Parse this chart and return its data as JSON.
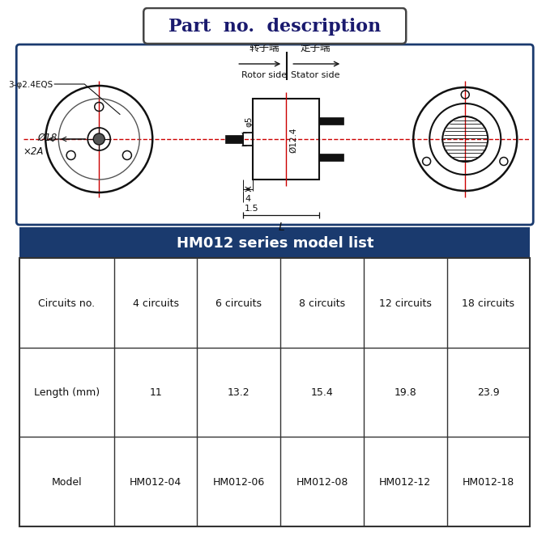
{
  "title": "Part  no.  description",
  "title_fontsize": 16,
  "title_color": "#1a1a6e",
  "title_box_color": "#ffffff",
  "title_border_color": "#444444",
  "diagram_border_color": "#1a3a6e",
  "drawing_color": "#111111",
  "red_line_color": "#cc0000",
  "table_header_bg": "#1a3a6e",
  "table_header_text": "#ffffff",
  "table_text": "#111111",
  "table_title": "HM012 series model list",
  "table_rows": [
    [
      "Circuits no.",
      "4 circuits",
      "6 circuits",
      "8 circuits",
      "12 circuits",
      "18 circuits"
    ],
    [
      "Length (mm)",
      "11",
      "13.2",
      "15.4",
      "19.8",
      "23.9"
    ],
    [
      "Model",
      "HM012-04",
      "HM012-06",
      "HM012-08",
      "HM012-12",
      "HM012-18"
    ]
  ],
  "label_rotor_cn": "转子端",
  "label_stator_cn": "定子端",
  "label_rotor_en": "Rotor side",
  "label_stator_en": "Stator side",
  "label_3holes": "3-φ2.4EQS",
  "label_d18": "Ø18",
  "label_d2A": "×2A",
  "label_d5": "φ5",
  "label_d12": "Ø12.4",
  "label_dim4": "4",
  "label_dim15": "1.5",
  "label_L": "L"
}
